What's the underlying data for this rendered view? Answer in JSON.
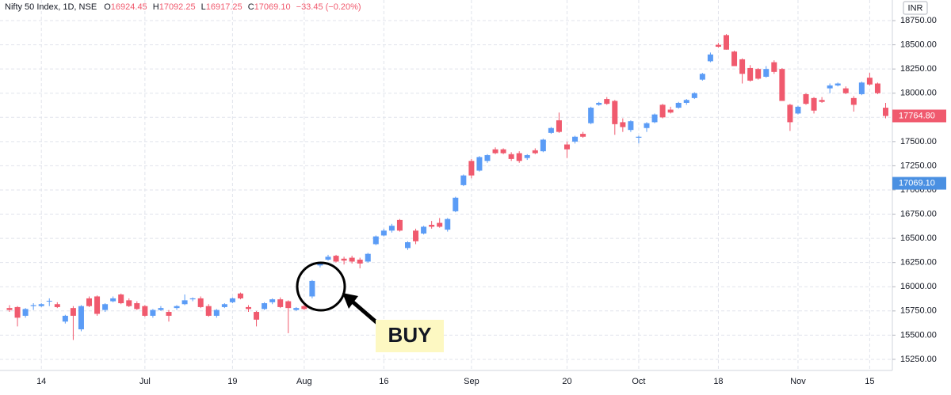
{
  "header": {
    "symbol": "Nifty 50 Index, 1D, NSE",
    "ohlc_legend": [
      {
        "key": "O",
        "text": "16924.45"
      },
      {
        "key": "H",
        "text": "17092.25"
      },
      {
        "key": "L",
        "text": "16917.25"
      },
      {
        "key": "C",
        "text": "17069.10"
      }
    ],
    "change": "−33.45 (−0.20%)",
    "currency": "INR"
  },
  "chart_data": {
    "type": "candlestick",
    "up_color": "#5b9cf6",
    "down_color": "#f05a6e",
    "grid": true,
    "categories": [
      null,
      null,
      null,
      null,
      "14",
      null,
      null,
      null,
      null,
      null,
      null,
      null,
      null,
      null,
      null,
      null,
      null,
      "Jul",
      null,
      null,
      null,
      null,
      null,
      null,
      null,
      null,
      null,
      null,
      "19",
      null,
      null,
      null,
      null,
      null,
      null,
      null,
      null,
      "Aug",
      null,
      null,
      null,
      null,
      null,
      null,
      null,
      null,
      null,
      "16",
      null,
      null,
      null,
      null,
      null,
      null,
      null,
      null,
      null,
      null,
      "Sep",
      null,
      null,
      null,
      null,
      null,
      null,
      null,
      null,
      null,
      null,
      null,
      "20",
      null,
      null,
      null,
      null,
      null,
      null,
      null,
      null,
      "Oct",
      null,
      null,
      null,
      null,
      null,
      null,
      null,
      null,
      null,
      "18",
      null,
      null,
      null,
      null,
      null,
      null,
      null,
      null,
      null,
      "Nov",
      null,
      null,
      null,
      null,
      null,
      null,
      null,
      null,
      "15",
      null,
      null
    ],
    "ohlc": [
      [
        15780,
        15810,
        15740,
        15760
      ],
      [
        15790,
        15800,
        15590,
        15680
      ],
      [
        15700,
        15780,
        15680,
        15770
      ],
      [
        15800,
        15830,
        15760,
        15810
      ],
      [
        15800,
        15830,
        15790,
        15820
      ],
      [
        15850,
        15880,
        15800,
        15855
      ],
      [
        15820,
        15840,
        15780,
        15790
      ],
      [
        15640,
        15710,
        15620,
        15700
      ],
      [
        15780,
        15800,
        15450,
        15700
      ],
      [
        15560,
        15810,
        15540,
        15800
      ],
      [
        15880,
        15900,
        15790,
        15800
      ],
      [
        15900,
        15910,
        15700,
        15720
      ],
      [
        15760,
        15830,
        15740,
        15820
      ],
      [
        15850,
        15900,
        15840,
        15880
      ],
      [
        15920,
        15930,
        15820,
        15830
      ],
      [
        15860,
        15880,
        15790,
        15800
      ],
      [
        15830,
        15850,
        15760,
        15770
      ],
      [
        15800,
        15810,
        15690,
        15700
      ],
      [
        15700,
        15770,
        15680,
        15760
      ],
      [
        15760,
        15800,
        15750,
        15780
      ],
      [
        15740,
        15760,
        15640,
        15700
      ],
      [
        15780,
        15810,
        15760,
        15800
      ],
      [
        15820,
        15920,
        15810,
        15860
      ],
      [
        15870,
        15890,
        15850,
        15880
      ],
      [
        15880,
        15900,
        15780,
        15790
      ],
      [
        15800,
        15820,
        15690,
        15700
      ],
      [
        15700,
        15770,
        15680,
        15760
      ],
      [
        15790,
        15830,
        15780,
        15820
      ],
      [
        15840,
        15890,
        15830,
        15880
      ],
      [
        15930,
        15940,
        15870,
        15880
      ],
      [
        15790,
        15810,
        15740,
        15770
      ],
      [
        15740,
        15750,
        15590,
        15660
      ],
      [
        15770,
        15840,
        15760,
        15830
      ],
      [
        15840,
        15880,
        15820,
        15870
      ],
      [
        15870,
        15890,
        15780,
        15790
      ],
      [
        15850,
        15860,
        15520,
        15780
      ],
      [
        15760,
        15790,
        15750,
        15780
      ],
      [
        15800,
        15810,
        15760,
        15770
      ],
      [
        15900,
        16070,
        15880,
        16060
      ],
      [
        16220,
        16260,
        16200,
        16250
      ],
      [
        16280,
        16330,
        16270,
        16310
      ],
      [
        16320,
        16330,
        16250,
        16260
      ],
      [
        16290,
        16310,
        16230,
        16270
      ],
      [
        16300,
        16320,
        16240,
        16260
      ],
      [
        16280,
        16300,
        16190,
        16240
      ],
      [
        16260,
        16350,
        16250,
        16340
      ],
      [
        16440,
        16530,
        16430,
        16520
      ],
      [
        16530,
        16600,
        16520,
        16580
      ],
      [
        16580,
        16650,
        16560,
        16630
      ],
      [
        16690,
        16700,
        16570,
        16580
      ],
      [
        16400,
        16470,
        16380,
        16460
      ],
      [
        16580,
        16600,
        16440,
        16470
      ],
      [
        16550,
        16630,
        16540,
        16620
      ],
      [
        16640,
        16680,
        16600,
        16620
      ],
      [
        16660,
        16710,
        16610,
        16620
      ],
      [
        16590,
        16710,
        16570,
        16700
      ],
      [
        16780,
        16930,
        16770,
        16920
      ],
      [
        17050,
        17160,
        17040,
        17150
      ],
      [
        17300,
        17320,
        17120,
        17150
      ],
      [
        17200,
        17350,
        17190,
        17340
      ],
      [
        17300,
        17370,
        17280,
        17360
      ],
      [
        17420,
        17440,
        17370,
        17380
      ],
      [
        17420,
        17430,
        17370,
        17380
      ],
      [
        17370,
        17390,
        17300,
        17320
      ],
      [
        17380,
        17400,
        17280,
        17300
      ],
      [
        17330,
        17370,
        17310,
        17360
      ],
      [
        17410,
        17430,
        17370,
        17380
      ],
      [
        17400,
        17530,
        17390,
        17520
      ],
      [
        17590,
        17650,
        17580,
        17640
      ],
      [
        17720,
        17800,
        17590,
        17600
      ],
      [
        17470,
        17500,
        17330,
        17420
      ],
      [
        17500,
        17560,
        17480,
        17550
      ],
      [
        17580,
        17600,
        17540,
        17550
      ],
      [
        17690,
        17860,
        17680,
        17850
      ],
      [
        17880,
        17910,
        17870,
        17900
      ],
      [
        17940,
        17960,
        17880,
        17890
      ],
      [
        17920,
        17930,
        17570,
        17680
      ],
      [
        17700,
        17740,
        17600,
        17650
      ],
      [
        17620,
        17720,
        17600,
        17710
      ],
      [
        17540,
        17560,
        17480,
        17550
      ],
      [
        17640,
        17700,
        17600,
        17690
      ],
      [
        17700,
        17790,
        17690,
        17780
      ],
      [
        17880,
        17890,
        17740,
        17750
      ],
      [
        17830,
        17860,
        17790,
        17800
      ],
      [
        17850,
        17910,
        17840,
        17900
      ],
      [
        17900,
        17940,
        17880,
        17930
      ],
      [
        17950,
        18010,
        17940,
        18000
      ],
      [
        18140,
        18210,
        18130,
        18200
      ],
      [
        18330,
        18420,
        18320,
        18400
      ],
      [
        18500,
        18520,
        18470,
        18480
      ],
      [
        18600,
        18610,
        18450,
        18450
      ],
      [
        18430,
        18440,
        18280,
        18280
      ],
      [
        18350,
        18360,
        18100,
        18200
      ],
      [
        18260,
        18290,
        18120,
        18130
      ],
      [
        18250,
        18260,
        18140,
        18150
      ],
      [
        18170,
        18280,
        18160,
        18250
      ],
      [
        18320,
        18340,
        18200,
        18220
      ],
      [
        18250,
        18260,
        17920,
        17920
      ],
      [
        17880,
        17890,
        17610,
        17700
      ],
      [
        17790,
        17870,
        17780,
        17860
      ],
      [
        17990,
        18000,
        17880,
        17890
      ],
      [
        17950,
        17960,
        17790,
        17820
      ],
      [
        17930,
        17960,
        17900,
        17910
      ],
      [
        18050,
        18100,
        18000,
        18080
      ],
      [
        18080,
        18110,
        18070,
        18100
      ],
      [
        18050,
        18070,
        17990,
        18000
      ],
      [
        17950,
        17970,
        17810,
        17880
      ],
      [
        17990,
        18120,
        17980,
        18110
      ],
      [
        18160,
        18210,
        18080,
        18090
      ],
      [
        18100,
        18110,
        17990,
        18000
      ],
      [
        17850,
        17900,
        17740,
        17764.8
      ]
    ],
    "ylim": [
      15135,
      18963
    ],
    "yticks": [
      {
        "value": 15250,
        "label": "15250.00"
      },
      {
        "value": 15500,
        "label": "15500.00"
      },
      {
        "value": 15750,
        "label": "15750.00"
      },
      {
        "value": 16000,
        "label": "16000.00"
      },
      {
        "value": 16250,
        "label": "16250.00"
      },
      {
        "value": 16500,
        "label": "16500.00"
      },
      {
        "value": 16750,
        "label": "16750.00"
      },
      {
        "value": 17000,
        "label": "17000.00"
      },
      {
        "value": 17250,
        "label": "17250.00"
      },
      {
        "value": 17500,
        "label": "17500.00"
      },
      {
        "value": 17750,
        "label": "17750.00"
      },
      {
        "value": 18000,
        "label": "18000.00"
      },
      {
        "value": 18250,
        "label": "18250.00"
      },
      {
        "value": 18500,
        "label": "18500.00"
      },
      {
        "value": 18750,
        "label": "18750.00"
      }
    ],
    "price_tags": [
      {
        "value": 17764.8,
        "label": "17764.80",
        "color": "#f05a6e"
      },
      {
        "value": 17069.1,
        "label": "17069.10",
        "color": "#4a90e2"
      }
    ],
    "annotation": "BUY"
  }
}
